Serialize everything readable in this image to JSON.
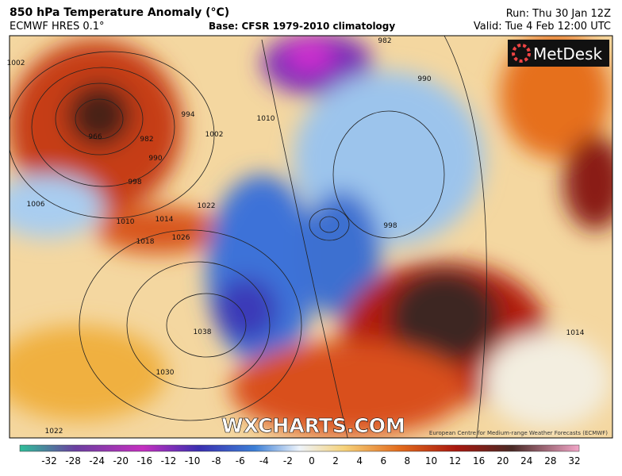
{
  "header": {
    "title": "850 hPa Temperature Anomaly (°C)",
    "model": "ECMWF HRES 0.1°",
    "base": "Base: CFSR 1979-2010 climatology",
    "run": "Run: Thu 30 Jan 12Z",
    "valid": "Valid: Tue 4 Feb 12:00 UTC"
  },
  "map": {
    "logo": "MetDesk",
    "watermark": "WXCHARTS.COM",
    "credit": "European Centre for Medium-range Weather Forecasts (ECMWF)",
    "isobar_labels": [
      966,
      982,
      990,
      998,
      1006,
      1010,
      1014,
      1018,
      1022,
      1026,
      1038,
      1030,
      1022,
      1010,
      994,
      1002,
      982,
      990,
      1014,
      998,
      1002
    ]
  },
  "colorbar": {
    "ticks": [
      -32,
      -28,
      -24,
      -20,
      -16,
      -12,
      -10,
      -8,
      -6,
      -4,
      -2,
      0,
      2,
      4,
      6,
      8,
      10,
      12,
      16,
      20,
      24,
      28,
      32
    ]
  }
}
